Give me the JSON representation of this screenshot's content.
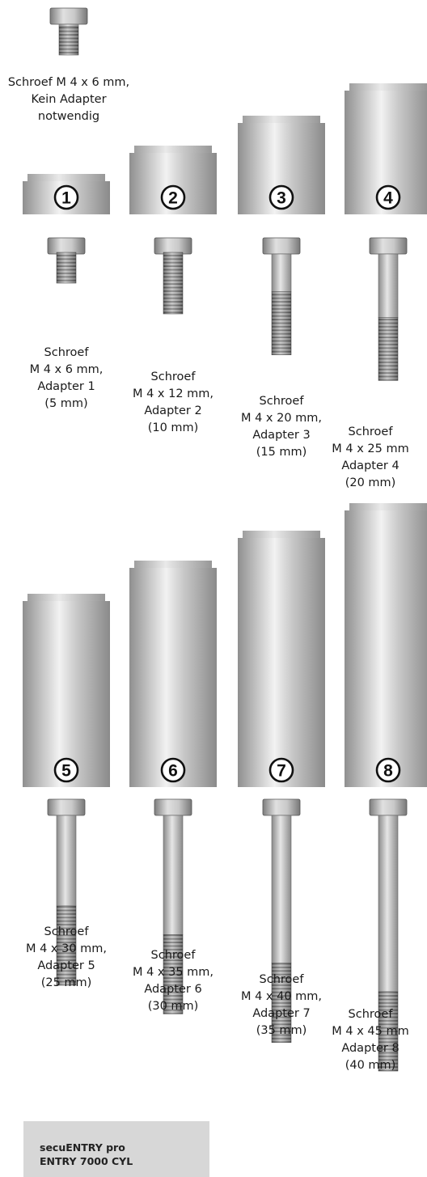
{
  "top_screw": {
    "lines": [
      "Schroef M 4 x 6 mm,",
      "Kein Adapter",
      "notwendig"
    ]
  },
  "adapters": [
    {
      "number": "1",
      "height_mm": 5,
      "length_mm": 6,
      "caption": [
        "Schroef",
        "M 4 x 6 mm,",
        "Adapter 1",
        "(5 mm)"
      ]
    },
    {
      "number": "2",
      "height_mm": 10,
      "length_mm": 12,
      "caption": [
        "Schroef",
        "M 4 x 12 mm,",
        "Adapter 2",
        "(10 mm)"
      ]
    },
    {
      "number": "3",
      "height_mm": 15,
      "length_mm": 20,
      "caption": [
        "Schroef",
        "M 4 x 20 mm,",
        "Adapter 3",
        "(15 mm)"
      ]
    },
    {
      "number": "4",
      "height_mm": 20,
      "length_mm": 25,
      "caption": [
        "Schroef",
        "M 4 x 25 mm",
        "Adapter 4",
        "(20 mm)"
      ]
    },
    {
      "number": "5",
      "height_mm": 25,
      "length_mm": 30,
      "caption": [
        "Schroef",
        "M 4 x 30 mm,",
        "Adapter 5",
        "(25 mm)"
      ]
    },
    {
      "number": "6",
      "height_mm": 30,
      "length_mm": 35,
      "caption": [
        "Schroef",
        "M 4 x 35 mm,",
        "Adapter 6",
        "(30 mm)"
      ]
    },
    {
      "number": "7",
      "height_mm": 35,
      "length_mm": 40,
      "caption": [
        "Schroef",
        "M 4 x 40 mm,",
        "Adapter 7",
        "(35 mm)"
      ]
    },
    {
      "number": "8",
      "height_mm": 40,
      "length_mm": 45,
      "caption": [
        "Schroef",
        "M 4 x 45 mm",
        "Adapter 8",
        "(40 mm)"
      ]
    }
  ],
  "footer": {
    "line1": "secuENTRY pro",
    "line2": "ENTRY 7000 CYL"
  },
  "colors": {
    "metal_dark": "#8f8f8f",
    "metal_light": "#f2f2f2",
    "thread_dark": "#6d6d6d",
    "badge_fill": "#ffffff",
    "badge_stroke": "#111111",
    "footer_bg": "#d7d7d7"
  }
}
